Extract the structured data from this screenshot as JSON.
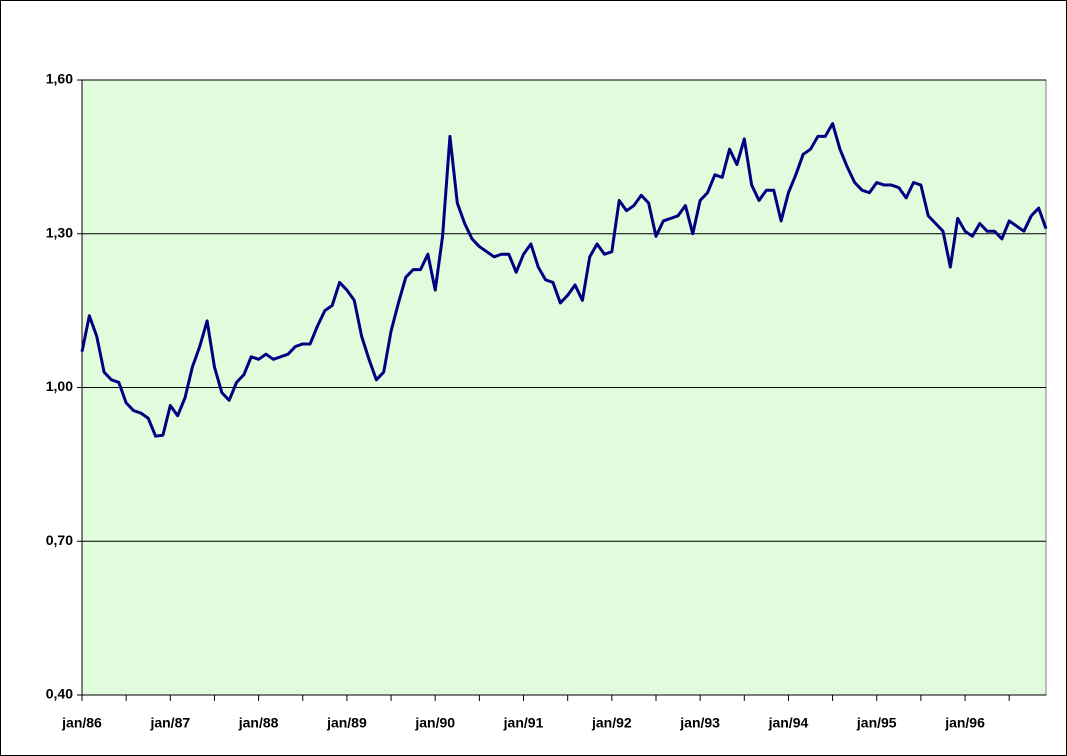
{
  "chart_data": {
    "type": "line",
    "categories": [
      "jan/86",
      null,
      null,
      null,
      null,
      null,
      null,
      null,
      null,
      null,
      null,
      null,
      "jan/87",
      null,
      null,
      null,
      null,
      null,
      null,
      null,
      null,
      null,
      null,
      null,
      "jan/88",
      null,
      null,
      null,
      null,
      null,
      null,
      null,
      null,
      null,
      null,
      null,
      "jan/89",
      null,
      null,
      null,
      null,
      null,
      null,
      null,
      null,
      null,
      null,
      null,
      "jan/90",
      null,
      null,
      null,
      null,
      null,
      null,
      null,
      null,
      null,
      null,
      null,
      "jan/91",
      null,
      null,
      null,
      null,
      null,
      null,
      null,
      null,
      null,
      null,
      null,
      "jan/92",
      null,
      null,
      null,
      null,
      null,
      null,
      null,
      null,
      null,
      null,
      null,
      "jan/93",
      null,
      null,
      null,
      null,
      null,
      null,
      null,
      null,
      null,
      null,
      null,
      "jan/94",
      null,
      null,
      null,
      null,
      null,
      null,
      null,
      null,
      null,
      null,
      null,
      "jan/95",
      null,
      null,
      null,
      null,
      null,
      null,
      null,
      null,
      null,
      null,
      null,
      "jan/96",
      null,
      null,
      null,
      null,
      null,
      null,
      null,
      null,
      null,
      null,
      null
    ],
    "values": [
      1.07,
      1.14,
      1.1,
      1.03,
      1.015,
      1.01,
      0.97,
      0.955,
      0.95,
      0.94,
      0.905,
      0.907,
      0.965,
      0.945,
      0.98,
      1.04,
      1.08,
      1.13,
      1.04,
      0.99,
      0.975,
      1.01,
      1.025,
      1.06,
      1.055,
      1.065,
      1.055,
      1.06,
      1.065,
      1.08,
      1.085,
      1.085,
      1.12,
      1.15,
      1.16,
      1.205,
      1.19,
      1.17,
      1.1,
      1.055,
      1.015,
      1.03,
      1.11,
      1.165,
      1.215,
      1.23,
      1.23,
      1.26,
      1.19,
      1.295,
      1.49,
      1.36,
      1.32,
      1.29,
      1.275,
      1.265,
      1.255,
      1.26,
      1.26,
      1.225,
      1.26,
      1.28,
      1.235,
      1.21,
      1.205,
      1.165,
      1.18,
      1.2,
      1.17,
      1.255,
      1.28,
      1.26,
      1.265,
      1.365,
      1.345,
      1.355,
      1.375,
      1.36,
      1.295,
      1.325,
      1.33,
      1.335,
      1.355,
      1.3,
      1.365,
      1.38,
      1.415,
      1.41,
      1.465,
      1.435,
      1.485,
      1.395,
      1.365,
      1.385,
      1.385,
      1.325,
      1.38,
      1.415,
      1.455,
      1.465,
      1.49,
      1.49,
      1.515,
      1.465,
      1.43,
      1.4,
      1.385,
      1.38,
      1.4,
      1.395,
      1.395,
      1.39,
      1.37,
      1.4,
      1.395,
      1.335,
      1.32,
      1.305,
      1.235,
      1.33,
      1.305,
      1.295,
      1.32,
      1.305,
      1.305,
      1.29,
      1.325,
      1.315,
      1.305,
      1.335,
      1.35,
      1.31
    ],
    "color": "#000080",
    "background": "#e1fbdd",
    "ylim": [
      0.4,
      1.6
    ],
    "yticks": [
      {
        "value": 0.4,
        "label": "0,40"
      },
      {
        "value": 0.7,
        "label": "0,70"
      },
      {
        "value": 1.0,
        "label": "1,00"
      },
      {
        "value": 1.3,
        "label": "1,30"
      },
      {
        "value": 1.6,
        "label": "1,60"
      }
    ],
    "grid": true
  }
}
